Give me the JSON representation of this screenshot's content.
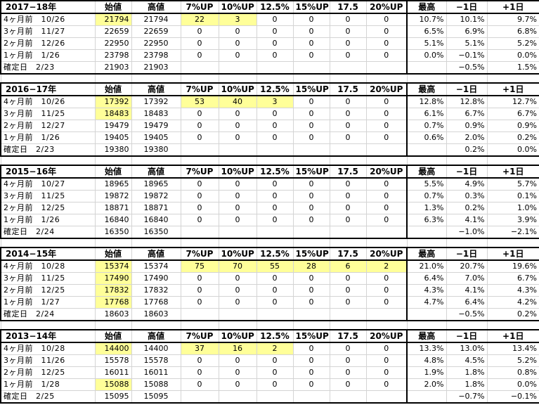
{
  "columns": [
    "始値",
    "高値",
    "7%UP",
    "10%UP",
    "12.5%",
    "15%UP",
    "17.5",
    "20%UP",
    "最高",
    "−1日",
    "+1日"
  ],
  "blocks": [
    {
      "year": "2017−18年",
      "rows": [
        {
          "label": "4ヶ月前　10/26",
          "open": "21794",
          "high": "21794",
          "u7": "22",
          "u10": "3",
          "u125": "0",
          "u15": "0",
          "u175": "0",
          "u20": "0",
          "max": "10.7%",
          "m1": "10.1%",
          "p1": "9.7%",
          "hl": [
            "open",
            "u7",
            "u10"
          ]
        },
        {
          "label": "3ヶ月前　11/27",
          "open": "22659",
          "high": "22659",
          "u7": "0",
          "u10": "0",
          "u125": "0",
          "u15": "0",
          "u175": "0",
          "u20": "0",
          "max": "6.5%",
          "m1": "6.9%",
          "p1": "6.8%",
          "hl": []
        },
        {
          "label": "2ヶ月前　12/26",
          "open": "22950",
          "high": "22950",
          "u7": "0",
          "u10": "0",
          "u125": "0",
          "u15": "0",
          "u175": "0",
          "u20": "0",
          "max": "5.1%",
          "m1": "5.1%",
          "p1": "5.2%",
          "hl": []
        },
        {
          "label": "1ヶ月前　1/26",
          "open": "23798",
          "high": "23798",
          "u7": "0",
          "u10": "0",
          "u125": "0",
          "u15": "0",
          "u175": "0",
          "u20": "0",
          "max": "0.0%",
          "m1": "−0.1%",
          "p1": "0.0%",
          "hl": []
        },
        {
          "label": "確定日　2/23",
          "open": "21903",
          "high": "21903",
          "u7": "",
          "u10": "",
          "u125": "",
          "u15": "",
          "u175": "",
          "u20": "",
          "max": "",
          "m1": "−0.5%",
          "p1": "1.5%",
          "hl": []
        }
      ]
    },
    {
      "year": "2016−17年",
      "rows": [
        {
          "label": "4ヶ月前　10/26",
          "open": "17392",
          "high": "17392",
          "u7": "53",
          "u10": "40",
          "u125": "3",
          "u15": "0",
          "u175": "0",
          "u20": "0",
          "max": "12.8%",
          "m1": "12.8%",
          "p1": "12.7%",
          "hl": [
            "open",
            "u7",
            "u10",
            "u125"
          ]
        },
        {
          "label": "3ヶ月前　11/25",
          "open": "18483",
          "high": "18483",
          "u7": "0",
          "u10": "0",
          "u125": "0",
          "u15": "0",
          "u175": "0",
          "u20": "0",
          "max": "6.1%",
          "m1": "6.7%",
          "p1": "6.7%",
          "hl": [
            "open"
          ]
        },
        {
          "label": "2ヶ月前　12/27",
          "open": "19479",
          "high": "19479",
          "u7": "0",
          "u10": "0",
          "u125": "0",
          "u15": "0",
          "u175": "0",
          "u20": "0",
          "max": "0.7%",
          "m1": "0.9%",
          "p1": "0.9%",
          "hl": []
        },
        {
          "label": "1ヶ月前　1/26",
          "open": "19405",
          "high": "19405",
          "u7": "0",
          "u10": "0",
          "u125": "0",
          "u15": "0",
          "u175": "0",
          "u20": "0",
          "max": "0.6%",
          "m1": "2.0%",
          "p1": "0.2%",
          "hl": []
        },
        {
          "label": "確定日　2/23",
          "open": "19380",
          "high": "19380",
          "u7": "",
          "u10": "",
          "u125": "",
          "u15": "",
          "u175": "",
          "u20": "",
          "max": "",
          "m1": "0.2%",
          "p1": "0.0%",
          "hl": []
        }
      ]
    },
    {
      "year": "2015−16年",
      "rows": [
        {
          "label": "4ヶ月前　10/27",
          "open": "18965",
          "high": "18965",
          "u7": "0",
          "u10": "0",
          "u125": "0",
          "u15": "0",
          "u175": "0",
          "u20": "0",
          "max": "5.5%",
          "m1": "4.9%",
          "p1": "5.7%",
          "hl": []
        },
        {
          "label": "3ヶ月前　11/25",
          "open": "19872",
          "high": "19872",
          "u7": "0",
          "u10": "0",
          "u125": "0",
          "u15": "0",
          "u175": "0",
          "u20": "0",
          "max": "0.7%",
          "m1": "0.3%",
          "p1": "0.1%",
          "hl": []
        },
        {
          "label": "2ヶ月前　12/25",
          "open": "18871",
          "high": "18871",
          "u7": "0",
          "u10": "0",
          "u125": "0",
          "u15": "0",
          "u175": "0",
          "u20": "0",
          "max": "1.3%",
          "m1": "0.2%",
          "p1": "1.0%",
          "hl": []
        },
        {
          "label": "1ヶ月前　1/26",
          "open": "16840",
          "high": "16840",
          "u7": "0",
          "u10": "0",
          "u125": "0",
          "u15": "0",
          "u175": "0",
          "u20": "0",
          "max": "6.3%",
          "m1": "4.1%",
          "p1": "3.9%",
          "hl": []
        },
        {
          "label": "確定日　2/24",
          "open": "16350",
          "high": "16350",
          "u7": "",
          "u10": "",
          "u125": "",
          "u15": "",
          "u175": "",
          "u20": "",
          "max": "",
          "m1": "−1.0%",
          "p1": "−2.1%",
          "hl": []
        }
      ]
    },
    {
      "year": "2014−15年",
      "rows": [
        {
          "label": "4ヶ月前　10/28",
          "open": "15374",
          "high": "15374",
          "u7": "75",
          "u10": "70",
          "u125": "55",
          "u15": "28",
          "u175": "6",
          "u20": "2",
          "max": "21.0%",
          "m1": "20.7%",
          "p1": "19.6%",
          "hl": [
            "open",
            "u7",
            "u10",
            "u125",
            "u15",
            "u175",
            "u20"
          ]
        },
        {
          "label": "3ヶ月前　11/25",
          "open": "17490",
          "high": "17490",
          "u7": "0",
          "u10": "0",
          "u125": "0",
          "u15": "0",
          "u175": "0",
          "u20": "0",
          "max": "6.4%",
          "m1": "7.0%",
          "p1": "6.7%",
          "hl": [
            "open"
          ]
        },
        {
          "label": "2ヶ月前　12/25",
          "open": "17832",
          "high": "17832",
          "u7": "0",
          "u10": "0",
          "u125": "0",
          "u15": "0",
          "u175": "0",
          "u20": "0",
          "max": "4.3%",
          "m1": "4.1%",
          "p1": "4.3%",
          "hl": [
            "open"
          ]
        },
        {
          "label": "1ヶ月前　1/27",
          "open": "17768",
          "high": "17768",
          "u7": "0",
          "u10": "0",
          "u125": "0",
          "u15": "0",
          "u175": "0",
          "u20": "0",
          "max": "4.7%",
          "m1": "6.4%",
          "p1": "4.2%",
          "hl": [
            "open"
          ]
        },
        {
          "label": "確定日　2/24",
          "open": "18603",
          "high": "18603",
          "u7": "",
          "u10": "",
          "u125": "",
          "u15": "",
          "u175": "",
          "u20": "",
          "max": "",
          "m1": "−0.5%",
          "p1": "0.2%",
          "hl": []
        }
      ]
    },
    {
      "year": "2013−14年",
      "rows": [
        {
          "label": "4ヶ月前　10/28",
          "open": "14400",
          "high": "14400",
          "u7": "37",
          "u10": "16",
          "u125": "2",
          "u15": "0",
          "u175": "0",
          "u20": "0",
          "max": "13.3%",
          "m1": "13.0%",
          "p1": "13.4%",
          "hl": [
            "open",
            "u7",
            "u10",
            "u125"
          ]
        },
        {
          "label": "3ヶ月前　11/26",
          "open": "15578",
          "high": "15578",
          "u7": "0",
          "u10": "0",
          "u125": "0",
          "u15": "0",
          "u175": "0",
          "u20": "0",
          "max": "4.8%",
          "m1": "4.5%",
          "p1": "5.2%",
          "hl": []
        },
        {
          "label": "2ヶ月前　12/25",
          "open": "16011",
          "high": "16011",
          "u7": "0",
          "u10": "0",
          "u125": "0",
          "u15": "0",
          "u175": "0",
          "u20": "0",
          "max": "1.9%",
          "m1": "1.8%",
          "p1": "0.8%",
          "hl": []
        },
        {
          "label": "1ヶ月前　1/28",
          "open": "15088",
          "high": "15088",
          "u7": "0",
          "u10": "0",
          "u125": "0",
          "u15": "0",
          "u175": "0",
          "u20": "0",
          "max": "2.0%",
          "m1": "1.8%",
          "p1": "0.0%",
          "hl": [
            "open"
          ]
        },
        {
          "label": "確定日　2/25",
          "open": "15095",
          "high": "15095",
          "u7": "",
          "u10": "",
          "u125": "",
          "u15": "",
          "u175": "",
          "u20": "",
          "max": "",
          "m1": "−0.7%",
          "p1": "−0.1%",
          "hl": []
        }
      ]
    }
  ],
  "colors": {
    "highlight": "#ffff99",
    "grid": "#d4d4d4",
    "border": "#000000"
  }
}
